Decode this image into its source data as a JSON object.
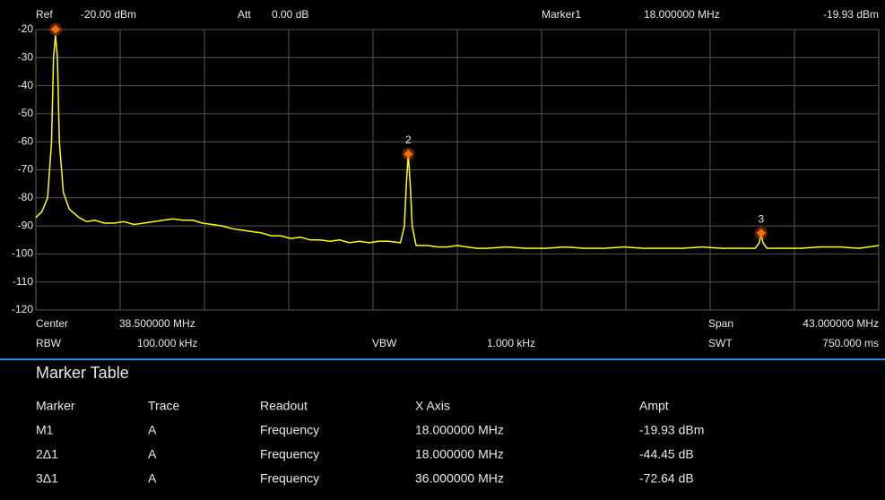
{
  "header": {
    "ref_label": "Ref",
    "ref": "-20.00 dBm",
    "att_label": "Att",
    "att": "0.00 dB",
    "marker_label": "Marker1",
    "marker_x": "18.000000 MHz",
    "marker_y": "-19.93 dBm"
  },
  "chart_data": {
    "type": "line",
    "color": "#ffff00",
    "marker_color": "#ff6a10",
    "grid": true,
    "xlim": [
      17,
      60
    ],
    "ylim": [
      -120,
      -20
    ],
    "yticks": [
      -20,
      -30,
      -40,
      -50,
      -60,
      -70,
      -80,
      -90,
      -100,
      -110,
      -120
    ],
    "x": [
      17,
      17.3,
      17.6,
      17.8,
      17.9,
      18.0,
      18.1,
      18.2,
      18.4,
      18.7,
      19.2,
      19.6,
      20,
      20.5,
      21,
      21.5,
      22,
      22.5,
      23,
      23.5,
      24,
      24.5,
      25,
      25.5,
      26,
      26.5,
      27,
      27.5,
      28,
      28.5,
      29,
      29.5,
      30,
      30.5,
      31,
      31.5,
      32,
      32.5,
      33,
      33.5,
      34,
      34.5,
      35,
      35.6,
      35.8,
      35.9,
      36.0,
      36.1,
      36.2,
      36.4,
      37,
      37.5,
      38,
      38.5,
      39,
      39.5,
      40,
      41,
      42,
      43,
      44,
      45,
      46,
      47,
      48,
      49,
      50,
      51,
      52,
      53,
      53.7,
      53.9,
      54.0,
      54.1,
      54.3,
      55,
      56,
      57,
      58,
      59,
      60
    ],
    "values": [
      -87,
      -85,
      -80,
      -60,
      -30,
      -22,
      -30,
      -60,
      -78,
      -84,
      -87,
      -88.5,
      -88,
      -89,
      -89,
      -88.5,
      -89.5,
      -89,
      -88.5,
      -88,
      -87.5,
      -88,
      -88,
      -89,
      -89.5,
      -90,
      -91,
      -91.5,
      -92,
      -92.5,
      -93.5,
      -93.5,
      -94.5,
      -94,
      -95,
      -95,
      -95.5,
      -95,
      -96,
      -95.5,
      -96,
      -95.5,
      -95.5,
      -96,
      -90,
      -75,
      -64.5,
      -75,
      -90,
      -97,
      -97,
      -97.5,
      -97.5,
      -97,
      -97.5,
      -98,
      -98,
      -97.5,
      -98,
      -98,
      -97.5,
      -98,
      -98,
      -97.5,
      -98,
      -98,
      -98,
      -97.5,
      -98,
      -98,
      -98,
      -96,
      -93,
      -96,
      -98,
      -98,
      -98,
      -97.5,
      -97.5,
      -98,
      -97
    ],
    "markers": [
      {
        "x": 18,
        "y": -19.93
      },
      {
        "x": 36,
        "y": -64.38,
        "label": "2"
      },
      {
        "x": 54,
        "y": -92.57,
        "label": "3"
      }
    ]
  },
  "footer": {
    "center_label": "Center",
    "center": "38.500000 MHz",
    "span_label": "Span",
    "span": "43.000000 MHz",
    "rbw_label": "RBW",
    "rbw": "100.000 kHz",
    "vbw_label": "VBW",
    "vbw": "1.000 kHz",
    "swt_label": "SWT",
    "swt": "750.000 ms"
  },
  "marker_table": {
    "title": "Marker Table",
    "columns": [
      "Marker",
      "Trace",
      "Readout",
      "X Axis",
      "Ampt"
    ],
    "rows": [
      [
        "M1",
        "A",
        "Frequency",
        "18.000000 MHz",
        "-19.93 dBm"
      ],
      [
        "2Δ1",
        "A",
        "Frequency",
        "18.000000 MHz",
        "-44.45 dB"
      ],
      [
        "3Δ1",
        "A",
        "Frequency",
        "36.000000 MHz",
        "-72.64 dB"
      ]
    ]
  }
}
